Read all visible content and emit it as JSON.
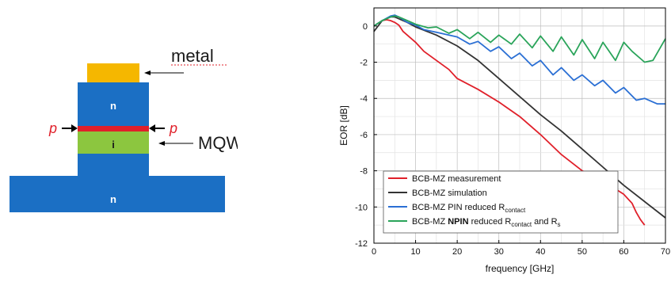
{
  "diagram": {
    "metal_label": "metal",
    "mqw_label": "MQW",
    "n_top_label": "n",
    "n_bottom_label": "n",
    "i_label": "i",
    "p_left_label": "p",
    "p_right_label": "p",
    "colors": {
      "substrate": "#1b6fc4",
      "metal": "#f5b700",
      "p_layer": "#e0202a",
      "i_layer": "#8cc63f",
      "p_text": "#e0202a"
    }
  },
  "chart_data": {
    "type": "line",
    "xlabel": "frequency [GHz]",
    "ylabel": "EOR [dB]",
    "xlim": [
      0,
      70
    ],
    "ylim": [
      -12,
      1
    ],
    "xticks": [
      0,
      10,
      20,
      30,
      40,
      50,
      60,
      70
    ],
    "yticks": [
      0,
      -2,
      -4,
      -6,
      -8,
      -10,
      -12
    ],
    "grid": true,
    "legend_position": "bottom-left",
    "series": [
      {
        "name": "BCB-MZ measurement",
        "color": "#e0202a",
        "x": [
          0,
          1,
          2,
          3,
          4,
          5,
          6,
          7,
          8,
          10,
          12,
          15,
          18,
          20,
          25,
          30,
          35,
          40,
          45,
          50,
          55,
          58,
          60,
          62,
          63,
          64,
          65
        ],
        "y": [
          0.0,
          0.15,
          0.3,
          0.35,
          0.3,
          0.2,
          0.05,
          -0.3,
          -0.5,
          -0.9,
          -1.4,
          -1.9,
          -2.4,
          -2.9,
          -3.5,
          -4.2,
          -5.0,
          -6.0,
          -7.1,
          -8.0,
          -8.6,
          -9.0,
          -9.3,
          -9.8,
          -10.3,
          -10.7,
          -11.0
        ]
      },
      {
        "name": "BCB-MZ simulation",
        "color": "#333333",
        "x": [
          0,
          2,
          4,
          5,
          6,
          8,
          10,
          15,
          20,
          25,
          30,
          35,
          40,
          45,
          50,
          55,
          60,
          65,
          70
        ],
        "y": [
          -0.3,
          0.3,
          0.5,
          0.5,
          0.4,
          0.2,
          -0.05,
          -0.5,
          -1.1,
          -1.9,
          -2.9,
          -3.9,
          -4.9,
          -5.8,
          -6.8,
          -7.8,
          -8.8,
          -9.7,
          -10.6
        ]
      },
      {
        "name": "BCB-MZ PIN reduced R",
        "name_sub": "contact",
        "color": "#2a6fd4",
        "x": [
          0,
          2,
          4,
          5,
          6,
          8,
          10,
          12,
          15,
          18,
          20,
          23,
          25,
          28,
          30,
          33,
          35,
          38,
          40,
          43,
          45,
          48,
          50,
          53,
          55,
          58,
          60,
          63,
          65,
          68,
          70
        ],
        "y": [
          0.0,
          0.3,
          0.55,
          0.6,
          0.5,
          0.2,
          0.05,
          -0.2,
          -0.35,
          -0.5,
          -0.6,
          -1.0,
          -0.85,
          -1.4,
          -1.15,
          -1.8,
          -1.5,
          -2.2,
          -1.9,
          -2.7,
          -2.3,
          -3.0,
          -2.7,
          -3.3,
          -3.0,
          -3.7,
          -3.4,
          -4.1,
          -4.0,
          -4.3,
          -4.3
        ]
      },
      {
        "name": "BCB-MZ NPIN reduced R",
        "name_bold": "NPIN",
        "name_sub": "contact",
        "name_tail": "and R",
        "name_tail_sub": "s",
        "color": "#2aa45a",
        "x": [
          0,
          2,
          4,
          5,
          6,
          8,
          10,
          13,
          15,
          18,
          20,
          23,
          25,
          28,
          30,
          33,
          35,
          38,
          40,
          43,
          45,
          48,
          50,
          53,
          55,
          58,
          60,
          62,
          65,
          67,
          70
        ],
        "y": [
          0.0,
          0.3,
          0.5,
          0.55,
          0.5,
          0.3,
          0.1,
          -0.1,
          -0.05,
          -0.4,
          -0.2,
          -0.7,
          -0.35,
          -0.9,
          -0.5,
          -1.0,
          -0.45,
          -1.2,
          -0.55,
          -1.4,
          -0.6,
          -1.6,
          -0.75,
          -1.8,
          -0.9,
          -1.9,
          -0.9,
          -1.4,
          -2.0,
          -1.9,
          -0.7
        ]
      }
    ]
  }
}
